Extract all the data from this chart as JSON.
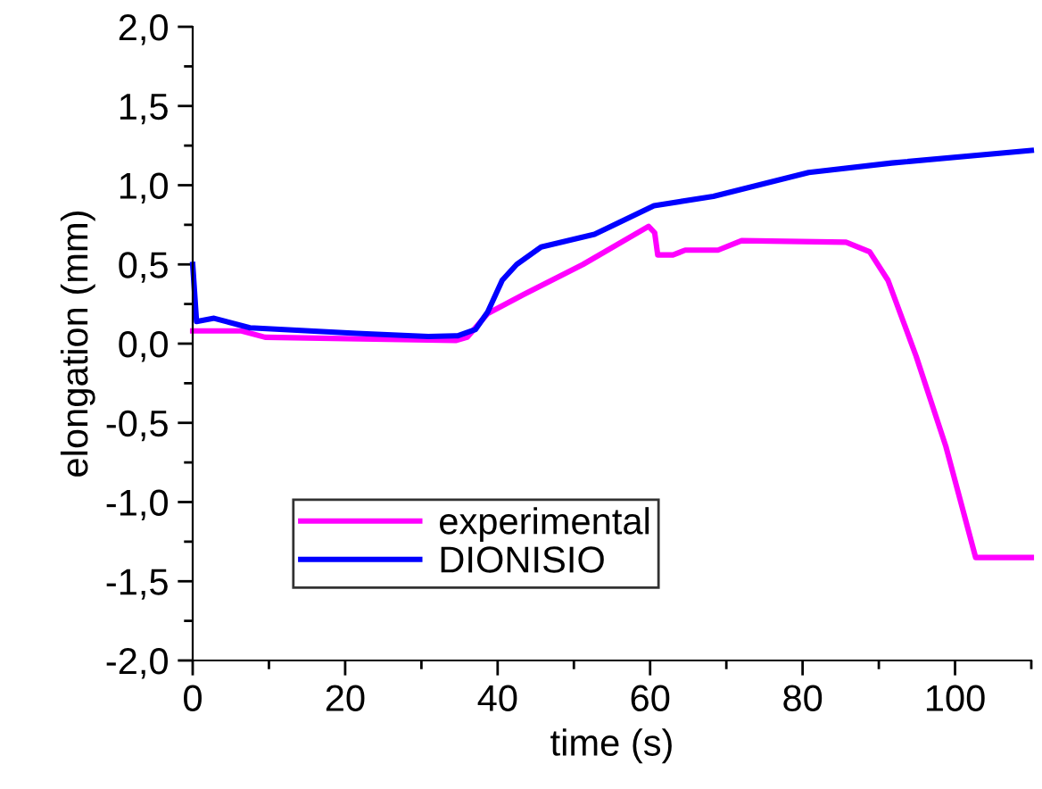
{
  "chart_data": {
    "type": "line",
    "xlabel": "time (s)",
    "ylabel": "elongation (mm)",
    "xlim": [
      0,
      110
    ],
    "ylim": [
      -2.0,
      2.0
    ],
    "xticks": [
      0,
      {
        "value": 10,
        "label": null
      },
      20,
      {
        "value": 30,
        "label": null
      },
      40,
      {
        "value": 50,
        "label": null
      },
      60,
      {
        "value": 70,
        "label": null
      },
      80,
      {
        "value": 90,
        "label": null
      },
      100,
      {
        "value": 110,
        "label": null
      }
    ],
    "yticks": [
      {
        "value": -2.0,
        "label": "-2,0"
      },
      {
        "value": -1.75,
        "label": null
      },
      {
        "value": -1.5,
        "label": "-1,5"
      },
      {
        "value": -1.25,
        "label": null
      },
      {
        "value": -1.0,
        "label": "-1,0"
      },
      {
        "value": -0.75,
        "label": null
      },
      {
        "value": -0.5,
        "label": "-0,5"
      },
      {
        "value": -0.25,
        "label": null
      },
      {
        "value": 0.0,
        "label": "0,0"
      },
      {
        "value": 0.25,
        "label": null
      },
      {
        "value": 0.5,
        "label": "0,5"
      },
      {
        "value": 0.75,
        "label": null
      },
      {
        "value": 1.0,
        "label": "1,0"
      },
      {
        "value": 1.25,
        "label": null
      },
      {
        "value": 1.5,
        "label": "1,5"
      },
      {
        "value": 1.75,
        "label": null
      },
      {
        "value": 2.0,
        "label": "2,0"
      }
    ],
    "grid": false,
    "legend": "bottom left",
    "marker": "none",
    "line_style": "solid",
    "series": [
      {
        "name": "experimental",
        "color": "#ff00ff",
        "x": [
          0,
          6.4,
          9.5,
          34.5,
          36,
          38.7,
          43.4,
          51.2,
          59.8,
          60.6,
          61,
          63,
          64.6,
          68.9,
          72,
          85.7,
          88.8,
          91.2,
          94.9,
          98.8,
          102.7,
          110
        ],
        "values": [
          0.08,
          0.08,
          0.04,
          0.02,
          0.04,
          0.19,
          0.31,
          0.5,
          0.74,
          0.7,
          0.56,
          0.56,
          0.59,
          0.59,
          0.65,
          0.64,
          0.58,
          0.4,
          -0.08,
          -0.65,
          -1.35,
          -1.35
        ]
      },
      {
        "name": "DIONISIO",
        "color": "#0000ff",
        "x": [
          0,
          0.5,
          2.8,
          7.5,
          21.5,
          30.9,
          34.8,
          37.1,
          38.7,
          40.6,
          42.5,
          45.7,
          52.7,
          60.5,
          68.3,
          80.8,
          91.7,
          110
        ],
        "values": [
          0.5,
          0.14,
          0.16,
          0.1,
          0.065,
          0.045,
          0.05,
          0.09,
          0.2,
          0.4,
          0.5,
          0.61,
          0.69,
          0.87,
          0.93,
          1.08,
          1.14,
          1.22
        ]
      }
    ]
  }
}
